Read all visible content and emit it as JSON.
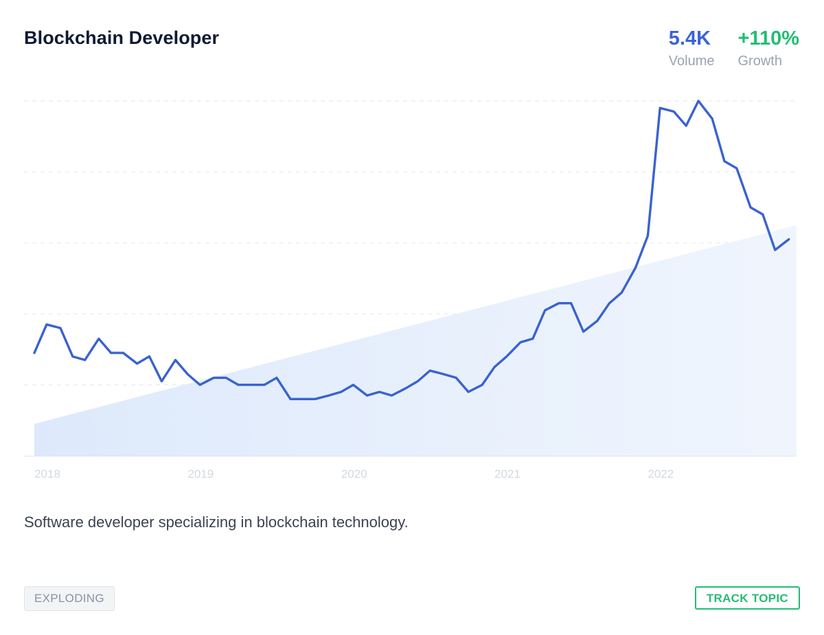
{
  "header": {
    "title": "Blockchain Developer",
    "volume": {
      "value": "5.4K",
      "label": "Volume"
    },
    "growth": {
      "value": "+110%",
      "label": "Growth"
    }
  },
  "description": "Software developer specializing in blockchain technology.",
  "badge": "EXPLODING",
  "track_button": "TRACK TOPIC",
  "colors": {
    "line": "#3a62cf",
    "volume": "#3a64d8",
    "growth": "#22bd72",
    "trend_fill": "#dfeafb"
  },
  "chart_data": {
    "type": "line",
    "title": "",
    "xlabel": "",
    "ylabel": "",
    "x_ticks": [
      2018,
      2019,
      2020,
      2021,
      2022
    ],
    "xlim": [
      2018,
      2022.97
    ],
    "ylim": [
      0,
      100
    ],
    "grid": true,
    "series": [
      {
        "values": [
          [
            2018.0,
            29
          ],
          [
            2018.08,
            37
          ],
          [
            2018.17,
            36
          ],
          [
            2018.25,
            28
          ],
          [
            2018.33,
            27
          ],
          [
            2018.42,
            33
          ],
          [
            2018.5,
            29
          ],
          [
            2018.58,
            29
          ],
          [
            2018.67,
            26
          ],
          [
            2018.75,
            28
          ],
          [
            2018.83,
            21
          ],
          [
            2018.92,
            27
          ],
          [
            2019.0,
            23
          ],
          [
            2019.08,
            20
          ],
          [
            2019.17,
            22
          ],
          [
            2019.25,
            22
          ],
          [
            2019.33,
            20
          ],
          [
            2019.42,
            20
          ],
          [
            2019.5,
            20
          ],
          [
            2019.58,
            22
          ],
          [
            2019.67,
            16
          ],
          [
            2019.75,
            16
          ],
          [
            2019.83,
            16
          ],
          [
            2019.92,
            17
          ],
          [
            2020.0,
            18
          ],
          [
            2020.08,
            20
          ],
          [
            2020.17,
            17
          ],
          [
            2020.25,
            18
          ],
          [
            2020.33,
            17
          ],
          [
            2020.42,
            19
          ],
          [
            2020.5,
            21
          ],
          [
            2020.58,
            24
          ],
          [
            2020.67,
            23
          ],
          [
            2020.75,
            22
          ],
          [
            2020.83,
            18
          ],
          [
            2020.92,
            20
          ],
          [
            2021.0,
            25
          ],
          [
            2021.08,
            28
          ],
          [
            2021.17,
            32
          ],
          [
            2021.25,
            33
          ],
          [
            2021.33,
            41
          ],
          [
            2021.42,
            43
          ],
          [
            2021.5,
            43
          ],
          [
            2021.58,
            35
          ],
          [
            2021.67,
            38
          ],
          [
            2021.75,
            43
          ],
          [
            2021.83,
            46
          ],
          [
            2021.92,
            53
          ],
          [
            2022.0,
            62
          ],
          [
            2022.08,
            98
          ],
          [
            2022.17,
            97
          ],
          [
            2022.25,
            93
          ],
          [
            2022.33,
            100
          ],
          [
            2022.42,
            95
          ],
          [
            2022.5,
            83
          ],
          [
            2022.58,
            81
          ],
          [
            2022.67,
            70
          ],
          [
            2022.75,
            68
          ],
          [
            2022.83,
            58
          ],
          [
            2022.92,
            61
          ]
        ]
      }
    ],
    "trend": {
      "start": 9,
      "end": 65
    }
  }
}
